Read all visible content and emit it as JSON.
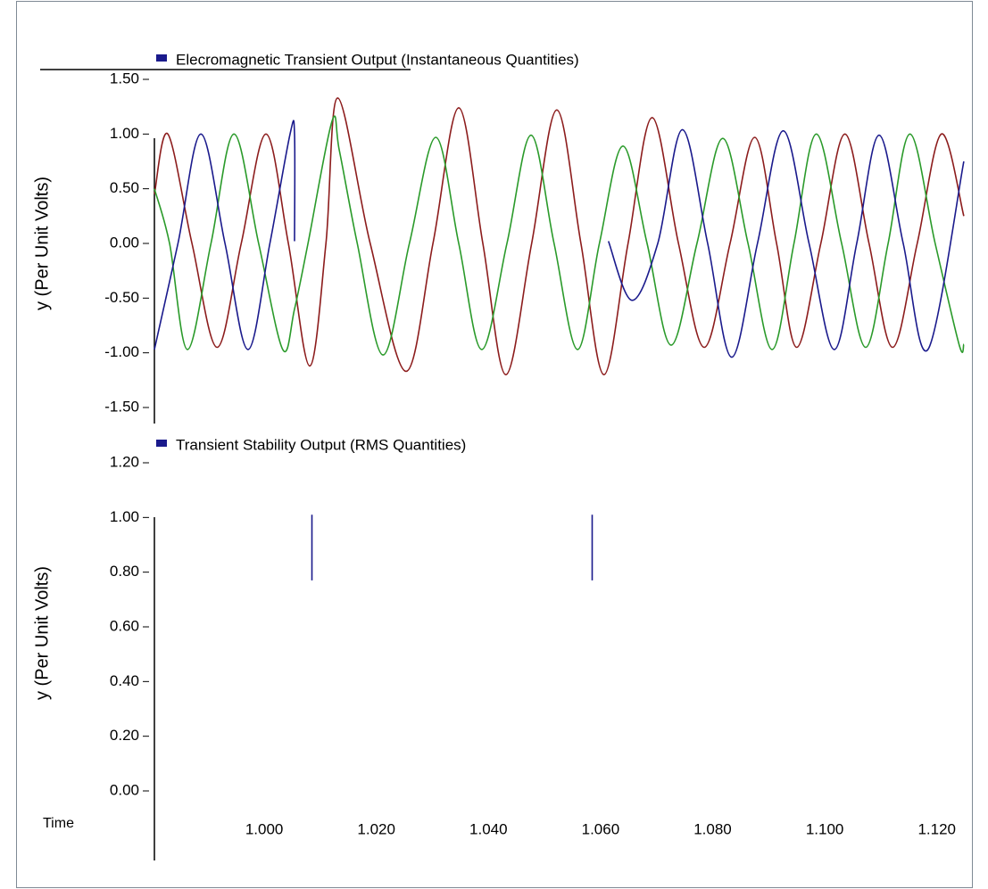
{
  "chart_data": [
    {
      "type": "line",
      "title": "Elecromagnetic Transient Output (Instantaneous Quantities)",
      "y_label": "y (Per Unit Volts)",
      "xlim": [
        0.9804,
        1.1253
      ],
      "ylim": [
        -1.5,
        1.5
      ],
      "yticks": [
        {
          "value": 1.5,
          "label": "1.50"
        },
        {
          "value": 1,
          "label": "1.00"
        },
        {
          "value": 0.5,
          "label": "0.50"
        },
        {
          "value": 0,
          "label": "0.00"
        },
        {
          "value": -0.5,
          "label": "-0.50"
        },
        {
          "value": -1,
          "label": "-1.00"
        },
        {
          "value": -1.5,
          "label": "-1.50"
        }
      ],
      "series": [
        {
          "color": "#8c1c1c",
          "x": [
            0.9804,
            0.9828,
            0.9871,
            0.9916,
            0.9959,
            1.0003,
            1.0043,
            1.0081,
            1.011,
            1.0131,
            1.0189,
            1.0253,
            1.0301,
            1.0347,
            1.039,
            1.0431,
            1.0477,
            1.0522,
            1.0565,
            1.0606,
            1.0649,
            1.0692,
            1.0739,
            1.0785,
            1.0831,
            1.0875,
            1.0914,
            1.095,
            1.0993,
            1.1036,
            1.1079,
            1.1121,
            1.1165,
            1.1208,
            1.1248
          ],
          "values": [
            0.45,
            1.0,
            0.0,
            -0.95,
            0.0,
            1.0,
            0.0,
            -1.12,
            0.0,
            1.33,
            0.0,
            -1.17,
            0.0,
            1.24,
            0.0,
            -1.2,
            0.0,
            1.22,
            0.0,
            -1.2,
            0.0,
            1.15,
            0.0,
            -0.95,
            0.0,
            0.97,
            0.0,
            -0.95,
            0.0,
            1.0,
            0.0,
            -0.95,
            0.0,
            1.0,
            0.25
          ]
        },
        {
          "color": "#2a9a2a",
          "x": [
            0.9804,
            0.9831,
            0.9863,
            0.9905,
            0.9946,
            0.999,
            1.0033,
            1.0054,
            1.0078,
            1.0121,
            1.0134,
            1.0166,
            1.0212,
            1.0259,
            1.0306,
            1.0347,
            1.0388,
            1.0433,
            1.0476,
            1.0517,
            1.0559,
            1.0598,
            1.064,
            1.0683,
            1.0726,
            1.0772,
            1.0818,
            1.0863,
            1.0906,
            1.0945,
            1.0985,
            1.103,
            1.1073,
            1.1113,
            1.1152,
            1.1197,
            1.124,
            1.1248
          ],
          "values": [
            0.5,
            0.0,
            -0.97,
            0.0,
            1.0,
            0.0,
            -0.97,
            -0.6,
            0.0,
            1.12,
            0.85,
            0.0,
            -1.02,
            0.0,
            0.97,
            0.0,
            -0.97,
            0.0,
            0.99,
            0.0,
            -0.97,
            0.0,
            0.89,
            0.0,
            -0.93,
            0.0,
            0.96,
            0.0,
            -0.97,
            0.0,
            1.0,
            0.0,
            -0.95,
            0.0,
            1.0,
            0.0,
            -0.93,
            -0.92
          ]
        },
        {
          "color": "#1a1a8c",
          "x": [
            0.9804,
            0.9846,
            0.9887,
            0.993,
            0.9971,
            1.001,
            1.0046,
            1.0054,
            1.0054,
            null,
            1.0614,
            1.0656,
            1.0702,
            1.0746,
            1.0791,
            1.0834,
            1.088,
            1.0926,
            1.0972,
            1.1017,
            1.1057,
            1.1097,
            1.114,
            1.1184,
            1.1248
          ],
          "values": [
            -0.97,
            0.0,
            1.0,
            0.0,
            -0.97,
            0.0,
            1.0,
            1.0,
            0.02,
            null,
            0.02,
            -0.52,
            0.0,
            1.04,
            0.0,
            -1.04,
            0.0,
            1.03,
            0.0,
            -0.97,
            0.0,
            0.99,
            0.0,
            -0.97,
            0.75
          ]
        }
      ]
    },
    {
      "type": "line",
      "title": "Transient Stability Output (RMS Quantities)",
      "y_label": "y (Per Unit Volts)",
      "x_label": "Time",
      "xlim": [
        0.9804,
        1.1253
      ],
      "xticks": [
        {
          "value": 1,
          "label": "1.000"
        },
        {
          "value": 1.02,
          "label": "1.020"
        },
        {
          "value": 1.04,
          "label": "1.040"
        },
        {
          "value": 1.06,
          "label": "1.060"
        },
        {
          "value": 1.08,
          "label": "1.080"
        },
        {
          "value": 1.1,
          "label": "1.100"
        },
        {
          "value": 1.12,
          "label": "1.120"
        }
      ],
      "ylim": [
        0,
        1.2
      ],
      "yticks": [
        {
          "value": 1.2,
          "label": "1.20"
        },
        {
          "value": 1,
          "label": "1.00"
        },
        {
          "value": 0.8,
          "label": "0.80"
        },
        {
          "value": 0.6,
          "label": "0.60"
        },
        {
          "value": 0.4,
          "label": "0.40"
        },
        {
          "value": 0.2,
          "label": "0.20"
        },
        {
          "value": 0,
          "label": "0.00"
        }
      ],
      "series": [
        {
          "color": "#1a1a8c",
          "x": [
            1.0085,
            1.0085,
            null,
            1.0585,
            1.0585
          ],
          "values": [
            1.01,
            0.77,
            null,
            1.01,
            0.77
          ]
        }
      ]
    }
  ]
}
